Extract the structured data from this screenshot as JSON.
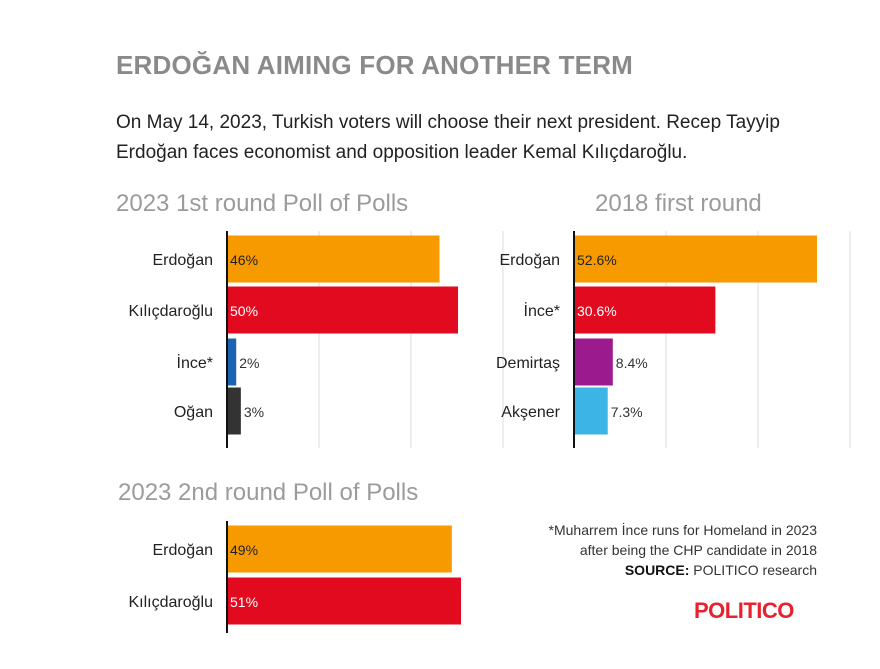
{
  "header": {
    "title": "ERDOĞAN AIMING FOR ANOTHER TERM",
    "subtitle": "On May 14, 2023, Turkish voters will choose their next president. Recep Tayyip Erdoğan faces economist and opposition leader Kemal Kılıçdaroğlu."
  },
  "chart_data": [
    {
      "type": "bar",
      "orientation": "horizontal",
      "title": "2023 1st round Poll of Polls",
      "categories": [
        "Erdoğan",
        "Kılıçdaroğlu",
        "İnce*",
        "Oğan"
      ],
      "values": [
        46,
        50,
        2,
        3
      ],
      "value_labels": [
        "46%",
        "50%",
        "2%",
        "3%"
      ],
      "colors": [
        "#f79a00",
        "#e10a1e",
        "#1b64b4",
        "#333333"
      ],
      "xlim": [
        0,
        50
      ],
      "grid": true
    },
    {
      "type": "bar",
      "orientation": "horizontal",
      "title": "2018 first round",
      "categories": [
        "Erdoğan",
        "İnce*",
        "Demirtaş",
        "Akşener"
      ],
      "values": [
        52.6,
        30.6,
        8.4,
        7.3
      ],
      "value_labels": [
        "52.6%",
        "30.6%",
        "8.4%",
        "7.3%"
      ],
      "colors": [
        "#f79a00",
        "#e10a1e",
        "#9b1b8e",
        "#3cb4e6"
      ],
      "xlim": [
        0,
        52.6
      ],
      "grid": true
    },
    {
      "type": "bar",
      "orientation": "horizontal",
      "title": "2023 2nd round Poll of Polls",
      "categories": [
        "Erdoğan",
        "Kılıçdaroğlu"
      ],
      "values": [
        49,
        51
      ],
      "value_labels": [
        "49%",
        "51%"
      ],
      "colors": [
        "#f79a00",
        "#e10a1e"
      ],
      "xlim": [
        0,
        51
      ],
      "grid": false
    }
  ],
  "footnote": {
    "line1": "*Muharrem İnce runs for Homeland in 2023",
    "line2": "after being the CHP candidate in 2018",
    "source_label": "SOURCE:",
    "source_text": " POLITICO research"
  },
  "logo": "POLITICO"
}
